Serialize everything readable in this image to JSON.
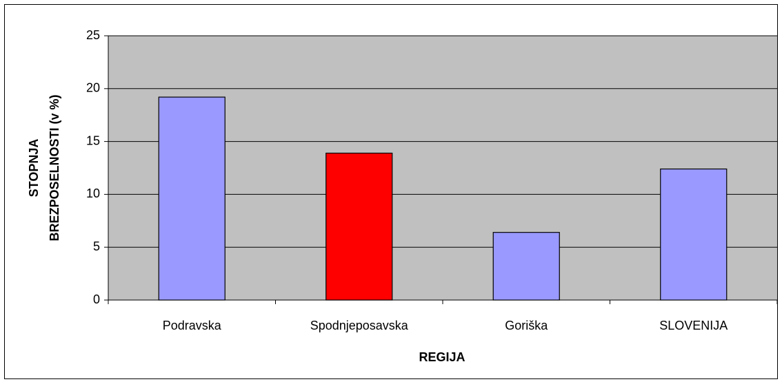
{
  "chart_data": {
    "type": "bar",
    "categories": [
      "Podravska",
      "Spodnjeposavska",
      "Goriška",
      "SLOVENIJA"
    ],
    "values": [
      19.2,
      13.9,
      6.4,
      12.4
    ],
    "colors": [
      "#9999ff",
      "#ff0000",
      "#9999ff",
      "#9999ff"
    ],
    "ylim": [
      0,
      25
    ],
    "yticks": [
      0,
      5,
      10,
      15,
      20,
      25
    ],
    "grid": true,
    "xlabel": "REGIJA",
    "ylabel": [
      "STOPNJA",
      "BREZPOSELNOSTI (v %)"
    ]
  }
}
